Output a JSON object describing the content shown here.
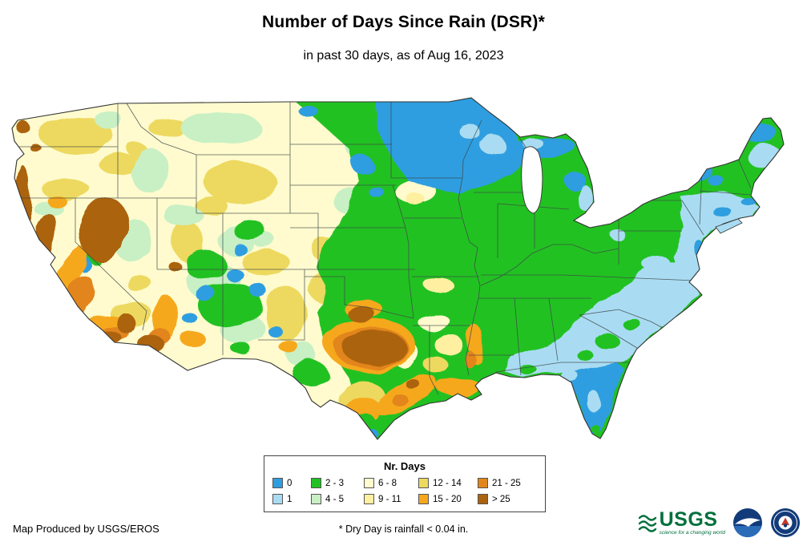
{
  "header": {
    "title": "Number of Days Since Rain (DSR)*",
    "subtitle": "in past 30 days, as of Aug 16, 2023"
  },
  "legend": {
    "title": "Nr. Days",
    "items": [
      {
        "label": "0",
        "color": "#2F9EE0"
      },
      {
        "label": "1",
        "color": "#A9DCF2"
      },
      {
        "label": "2 - 3",
        "color": "#22C122"
      },
      {
        "label": "4 - 5",
        "color": "#C8F0C4"
      },
      {
        "label": "6 - 8",
        "color": "#FFFBCE"
      },
      {
        "label": "9 - 11",
        "color": "#FEF0A0"
      },
      {
        "label": "12 - 14",
        "color": "#EDD95E"
      },
      {
        "label": "15 - 20",
        "color": "#F6A81C"
      },
      {
        "label": "21 - 25",
        "color": "#E2851B"
      },
      {
        "label": "> 25",
        "color": "#AC6310"
      }
    ]
  },
  "footer": {
    "credit": "Map Produced by USGS/EROS",
    "note": "* Dry Day is rainfall < 0.04 in."
  },
  "logos": {
    "usgs": {
      "text": "USGS",
      "tagline": "science for a changing world"
    },
    "noaa": {
      "icon": "noaa-seal"
    },
    "nws": {
      "icon": "nws-seal"
    }
  }
}
